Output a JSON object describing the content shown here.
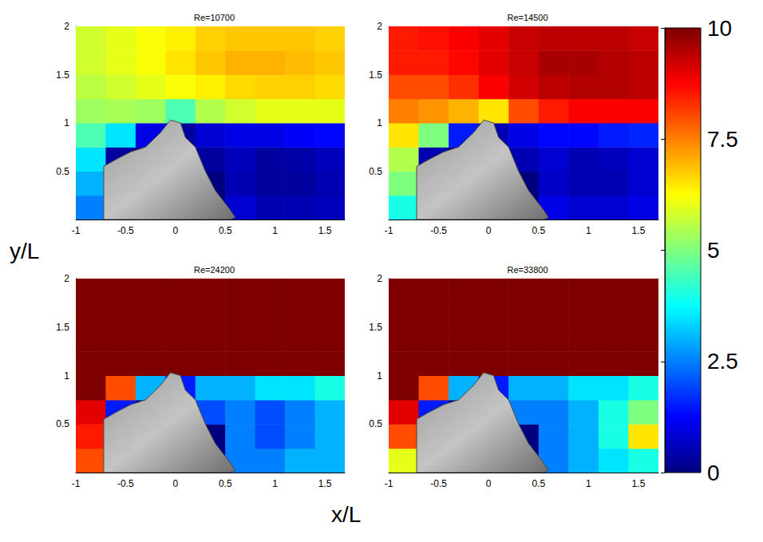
{
  "chart_data": {
    "type": "heatmap",
    "xlabel": "x/L",
    "ylabel": "y/L",
    "xlim": [
      -1,
      1.7
    ],
    "xticks": [
      -1,
      -0.5,
      0,
      0.5,
      1,
      1.5
    ],
    "ylim": [
      0,
      2
    ],
    "yticks": [
      0.5,
      1,
      1.5,
      2
    ],
    "x_edges": [
      -1,
      -0.7,
      -0.4,
      -0.1,
      0.2,
      0.5,
      0.8,
      1.1,
      1.4,
      1.7
    ],
    "y_edges": [
      0,
      0.25,
      0.5,
      0.75,
      1,
      1.25,
      1.5,
      1.75,
      2
    ],
    "obstacle": [
      [
        -0.72,
        0.0
      ],
      [
        -0.72,
        0.55
      ],
      [
        -0.6,
        0.62
      ],
      [
        -0.45,
        0.7
      ],
      [
        -0.3,
        0.75
      ],
      [
        -0.15,
        0.9
      ],
      [
        -0.05,
        1.03
      ],
      [
        0.05,
        1.0
      ],
      [
        0.1,
        0.85
      ],
      [
        0.2,
        0.75
      ],
      [
        0.3,
        0.5
      ],
      [
        0.4,
        0.3
      ],
      [
        0.55,
        0.1
      ],
      [
        0.6,
        0.02
      ],
      [
        0.55,
        0.0
      ]
    ],
    "colorbar": {
      "lim": [
        0,
        10
      ],
      "ticks": [
        0,
        2.5,
        5,
        7.5,
        10
      ]
    },
    "panels": [
      {
        "title": "Re=10700",
        "speed": [
          [
            2.5,
            0,
            0,
            0,
            0,
            0.8,
            0.5,
            0.5,
            0.6
          ],
          [
            3,
            0,
            0,
            0,
            0,
            0.5,
            0.3,
            0.3,
            0.5
          ],
          [
            3.5,
            0.3,
            0,
            0,
            0.3,
            0.6,
            0.3,
            0.4,
            0.6
          ],
          [
            4.5,
            3.5,
            1,
            0.3,
            0.8,
            1,
            1,
            1.2,
            1.3
          ],
          [
            5.3,
            5.4,
            5.3,
            4.5,
            5.5,
            5.8,
            6,
            6,
            6
          ],
          [
            5.6,
            5.8,
            6,
            6.2,
            6.4,
            6.6,
            6.7,
            6.7,
            6.6
          ],
          [
            5.8,
            6,
            6.2,
            6.5,
            6.8,
            7,
            7,
            6.9,
            6.8
          ],
          [
            5.8,
            6,
            6.2,
            6.4,
            6.7,
            6.8,
            6.8,
            6.8,
            6.7
          ]
        ]
      },
      {
        "title": "Re=14500",
        "speed": [
          [
            4,
            0,
            0,
            0,
            0,
            1,
            0.8,
            0.8,
            1
          ],
          [
            5,
            0,
            0,
            0,
            0,
            0.7,
            0.5,
            0.5,
            0.8
          ],
          [
            5.5,
            0.5,
            0,
            0,
            0.5,
            0.8,
            0.5,
            0.6,
            0.8
          ],
          [
            6.5,
            5,
            1.5,
            0.5,
            1,
            1.3,
            1.3,
            1.5,
            1.6
          ],
          [
            7.5,
            7.3,
            7,
            6.5,
            8,
            8.5,
            8.8,
            8.8,
            8.8
          ],
          [
            8,
            8,
            8.3,
            8.8,
            9.2,
            9.4,
            9.5,
            9.5,
            9.4
          ],
          [
            8.5,
            8.5,
            8.7,
            9,
            9.3,
            9.6,
            9.6,
            9.5,
            9.4
          ],
          [
            8.5,
            8.6,
            8.8,
            9,
            9.3,
            9.4,
            9.4,
            9.4,
            9.3
          ]
        ]
      },
      {
        "title": "Re=24200",
        "speed": [
          [
            8,
            0,
            0,
            0,
            0,
            2.5,
            2.5,
            3,
            3
          ],
          [
            8.5,
            0,
            0,
            0,
            0,
            2.5,
            2,
            2.5,
            3
          ],
          [
            9,
            1.5,
            0,
            0,
            2,
            2.5,
            2,
            2.5,
            3
          ],
          [
            10,
            8,
            3,
            1.5,
            3,
            3,
            3.5,
            3.5,
            4
          ],
          [
            11,
            11,
            11,
            11,
            11,
            11,
            11,
            11,
            11
          ],
          [
            11,
            11,
            11,
            11,
            11,
            11,
            11,
            11,
            11
          ],
          [
            11,
            11,
            11,
            11,
            11,
            11,
            11,
            11,
            11
          ],
          [
            11,
            11,
            11,
            11,
            11,
            11,
            11,
            11,
            11
          ]
        ]
      },
      {
        "title": "Re=33800",
        "speed": [
          [
            6,
            0,
            0,
            0,
            0,
            2.5,
            3,
            3.5,
            4
          ],
          [
            8,
            0,
            0,
            0,
            0,
            2.5,
            3,
            4,
            6.5
          ],
          [
            9,
            1.5,
            0,
            0,
            2.5,
            2.5,
            3,
            4,
            5
          ],
          [
            11,
            8,
            3,
            1.5,
            3,
            3,
            3.5,
            3.5,
            4
          ],
          [
            11,
            11,
            11,
            11,
            11,
            11,
            11,
            11,
            11
          ],
          [
            11,
            11,
            11,
            11,
            11,
            11,
            11,
            11,
            11
          ],
          [
            11,
            11,
            11,
            11,
            11,
            11,
            11,
            11,
            11
          ],
          [
            11,
            11,
            11,
            11,
            11,
            11,
            11,
            11,
            11
          ]
        ]
      }
    ]
  }
}
